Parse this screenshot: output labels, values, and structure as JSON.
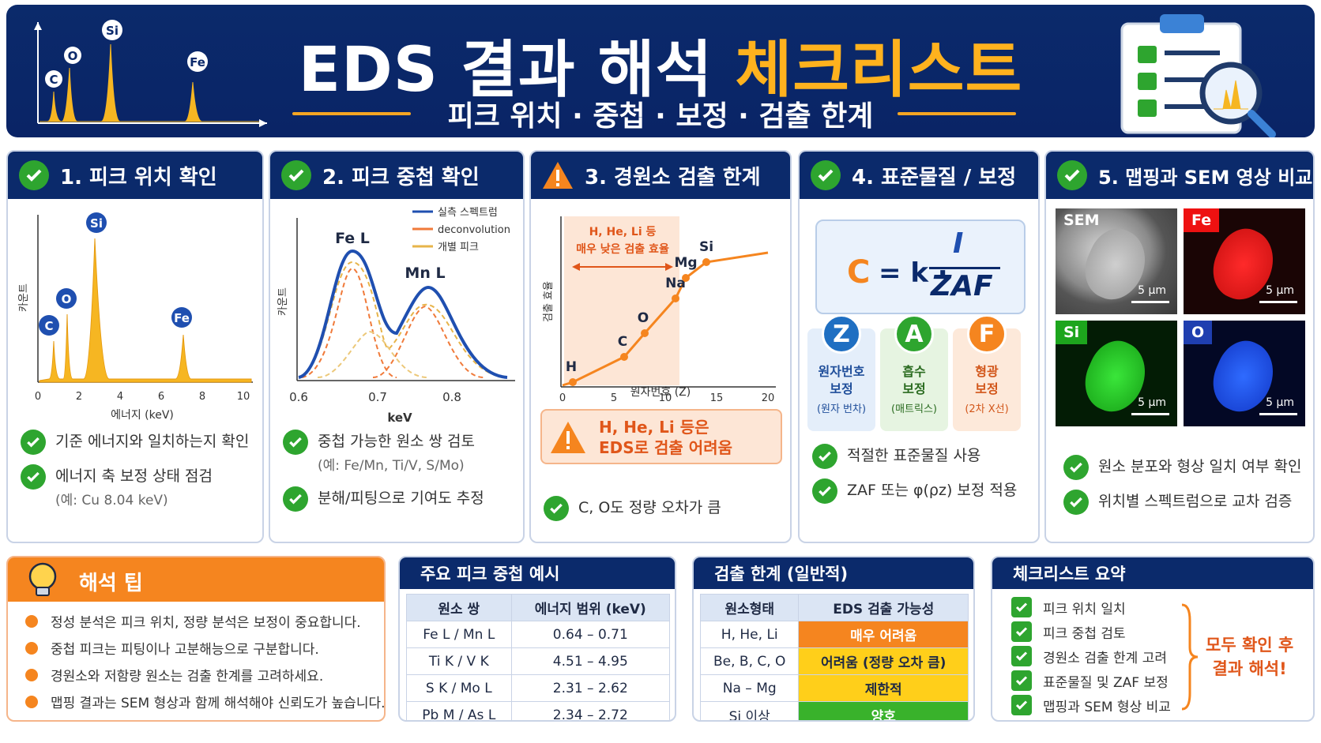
{
  "header": {
    "title_a": "EDS 결과 해석",
    "title_b": "체크리스트",
    "subtitle": "피크 위치 · 중첩 · 보정 · 검출 한계"
  },
  "header_peaks": [
    "C",
    "O",
    "Si",
    "Fe"
  ],
  "cards": [
    {
      "title": "1. 피크 위치 확인",
      "ylabel": "카운트",
      "xlabel": "에너지 (keV)",
      "xticks": [
        "0",
        "2",
        "4",
        "6",
        "8",
        "10"
      ],
      "peaks": [
        "C",
        "O",
        "Si",
        "Fe"
      ],
      "bullets": [
        {
          "text": "기준 에너지와 일치하는지 확인",
          "sub": ""
        },
        {
          "text": "에너지 축 보정 상태 점검",
          "sub": "(예: Cu 8.04 keV)"
        }
      ]
    },
    {
      "title": "2. 피크 중첩 확인",
      "ylabel": "카운트",
      "xlabel": "keV",
      "xticks": [
        "0.6",
        "0.7",
        "0.8"
      ],
      "peak_a": "Fe L",
      "peak_b": "Mn L",
      "legend": [
        "실측 스펙트럼",
        "deconvolution",
        "개별 피크"
      ],
      "bullets": [
        {
          "text": "중첩 가능한 원소 쌍 검토",
          "sub": "(예: Fe/Mn, Ti/V, S/Mo)"
        },
        {
          "text": "분해/피팅으로 기여도 추정",
          "sub": ""
        }
      ]
    },
    {
      "title": "3. 경원소 검출 한계",
      "ylabel": "검출 효율",
      "xlabel": "원자번호 (Z)",
      "xticks": [
        "0",
        "5",
        "10",
        "15",
        "20"
      ],
      "region_a": "H, He, Li 등",
      "region_b": "매우 낮은 검출 효율",
      "elements": [
        "H",
        "C",
        "O",
        "Na",
        "Mg",
        "Si"
      ],
      "warn_a": "H, He, Li 등은",
      "warn_b": "EDS로 검출 어려움",
      "bullets": [
        {
          "text": "C, O도 정량 오차가 큼",
          "sub": ""
        }
      ]
    },
    {
      "title": "4. 표준물질 / 보정",
      "formula_c": "C",
      "formula_eq": "= k ·",
      "formula_num": "I",
      "formula_den": "ZAF",
      "factors": [
        {
          "letter": "Z",
          "l1": "원자번호",
          "l2": "보정",
          "l3": "(원자 번차)",
          "color": "#1f6fc2",
          "bg": "#e4eefa",
          "tc": "#1f4e9a"
        },
        {
          "letter": "A",
          "l1": "흡수",
          "l2": "보정",
          "l3": "(매트릭스)",
          "color": "#2ea52f",
          "bg": "#e6f4e1",
          "tc": "#2a6b20"
        },
        {
          "letter": "F",
          "l1": "형광",
          "l2": "보정",
          "l3": "(2차 X선)",
          "color": "#f5851f",
          "bg": "#fde9da",
          "tc": "#d2561a"
        }
      ],
      "bullets": [
        {
          "text": "적절한 표준물질 사용",
          "sub": ""
        },
        {
          "text": "ZAF 또는 φ(ρz) 보정 적용",
          "sub": ""
        }
      ]
    },
    {
      "title": "5. 맵핑과 SEM 영상 비교",
      "tiles": [
        {
          "label": "SEM",
          "scale": "5 μm"
        },
        {
          "label": "Fe",
          "scale": "5 μm"
        },
        {
          "label": "Si",
          "scale": "5 μm"
        },
        {
          "label": "O",
          "scale": "5 μm"
        }
      ],
      "bullets": [
        {
          "text": "원소 분포와 형상 일치 여부 확인",
          "sub": ""
        },
        {
          "text": "위치별 스펙트럼으로 교차 검증",
          "sub": ""
        }
      ]
    }
  ],
  "tips": {
    "title": "해석 팁",
    "items": [
      "정성 분석은 피크 위치, 정량 분석은 보정이 중요합니다.",
      "중첩 피크는 피팅이나 고분해능으로 구분합니다.",
      "경원소와 저함량 원소는 검출 한계를 고려하세요.",
      "맵핑 결과는 SEM 형상과 함께 해석해야 신뢰도가 높습니다."
    ]
  },
  "overlap_table": {
    "title": "주요 피크 중첩 예시",
    "headers": [
      "원소 쌍",
      "에너지 범위 (keV)"
    ],
    "rows": [
      [
        "Fe L / Mn L",
        "0.64 – 0.71"
      ],
      [
        "Ti K / V K",
        "4.51 – 4.95"
      ],
      [
        "S K / Mo L",
        "2.31 – 2.62"
      ],
      [
        "Pb M / As L",
        "2.34 – 2.72"
      ]
    ]
  },
  "limit_table": {
    "title": "검출 한계 (일반적)",
    "headers": [
      "원소형태",
      "EDS 검출 가능성"
    ],
    "rows": [
      [
        "H, He, Li",
        "매우 어려움"
      ],
      [
        "Be, B, C, O",
        "어려움 (정량 오차 큼)"
      ],
      [
        "Na – Mg",
        "제한적"
      ],
      [
        "Si 이상",
        "양호"
      ]
    ],
    "colors": [
      "#f5851f",
      "#ffcf1a",
      "#ffcf1a",
      "#39b22b"
    ],
    "text_colors": [
      "#fff",
      "#1f2a44",
      "#1f2a44",
      "#fff"
    ]
  },
  "summary": {
    "title": "체크리스트 요약",
    "items": [
      "피크 위치 일치",
      "피크 중첩 검토",
      "경원소 검출 한계 고려",
      "표준물질 및 ZAF 보정",
      "맵핑과 SEM 형상 비교"
    ],
    "note_a": "모두 확인 후",
    "note_b": "결과 해석!"
  }
}
